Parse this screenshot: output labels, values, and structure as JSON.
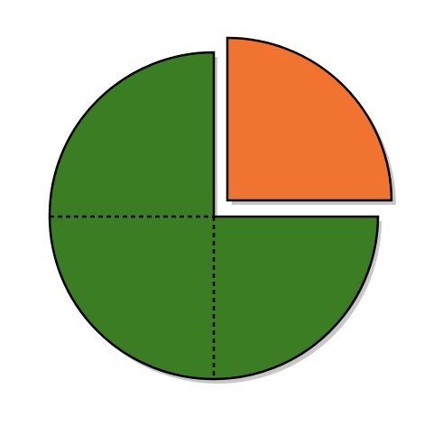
{
  "diagram": {
    "type": "fraction-pie",
    "total_parts": 4,
    "highlighted_parts": 1,
    "remaining_parts": 3,
    "highlighted_part_position": "top-right",
    "highlighted_part_separated": true,
    "colors": {
      "highlighted_fill": "#f07430",
      "remaining_fill": "#3a7d23",
      "outline": "#000000",
      "shadow": "#c8c8c8",
      "background": "#ffffff"
    }
  }
}
